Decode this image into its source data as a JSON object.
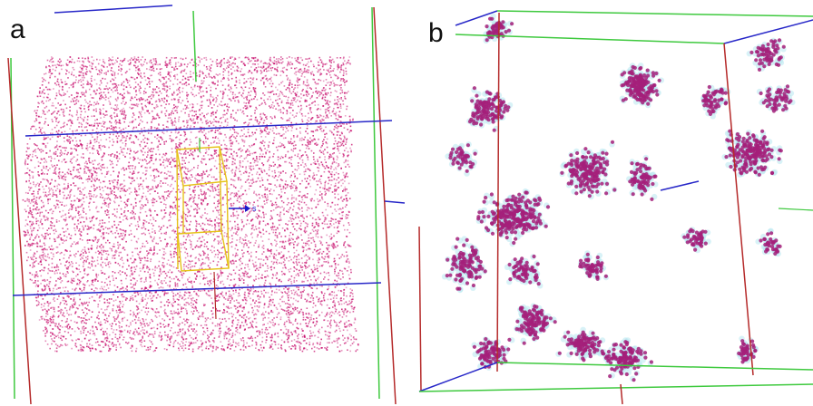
{
  "figure": {
    "panels": [
      {
        "id": "a",
        "label": "a"
      },
      {
        "id": "b",
        "label": "b"
      }
    ],
    "roi_axis_label": "s"
  },
  "colors": {
    "atoms": "#c8106e",
    "atoms_b": "#a4207a",
    "halo": "#b8e8f0",
    "box_green": "#3ec93e",
    "box_blue": "#2727c8",
    "box_red": "#b52a2a",
    "roi_yellow": "#e6c21a"
  }
}
